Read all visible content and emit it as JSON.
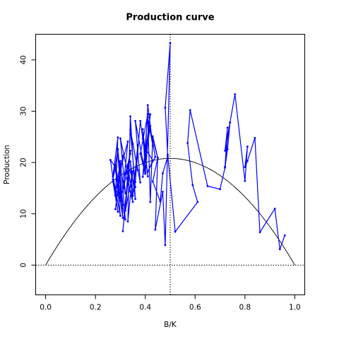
{
  "chart_data": {
    "type": "line",
    "title": "Production curve",
    "xlabel": "B/K",
    "ylabel": "Production",
    "xlim": [
      -0.04,
      1.04
    ],
    "ylim": [
      -5.8,
      45
    ],
    "x_ticks": [
      {
        "value": 0.0,
        "label": "0.0"
      },
      {
        "value": 0.2,
        "label": "0.2"
      },
      {
        "value": 0.4,
        "label": "0.4"
      },
      {
        "value": 0.6,
        "label": "0.6"
      },
      {
        "value": 0.8,
        "label": "0.8"
      },
      {
        "value": 1.0,
        "label": "1.0"
      }
    ],
    "y_ticks": [
      {
        "value": 0,
        "label": "0"
      },
      {
        "value": 10,
        "label": "10"
      },
      {
        "value": 20,
        "label": "20"
      },
      {
        "value": 30,
        "label": "30"
      },
      {
        "value": 40,
        "label": "40"
      }
    ],
    "grid": false,
    "colors": {
      "series": "#0000ff",
      "curve": "#000000",
      "reference": "#000000"
    },
    "curve": {
      "form": "parabola",
      "x_start": 0.0,
      "x_end": 1.0,
      "peak_x": 0.5,
      "peak_y": 20.8
    },
    "reference_lines": {
      "horizontal_y": 0,
      "vertical_x": 0.5
    },
    "series": [
      {
        "x": [
          0.96,
          0.94,
          0.92,
          0.86,
          0.84,
          0.81,
          0.8,
          0.81,
          0.8,
          0.76,
          0.74,
          0.72,
          0.73,
          0.72,
          0.74,
          0.73,
          0.72,
          0.7,
          0.65,
          0.58,
          0.57,
          0.59,
          0.61,
          0.52,
          0.49,
          0.48,
          0.5,
          0.48,
          0.47,
          0.44,
          0.45,
          0.43,
          0.42,
          0.41,
          0.43,
          0.41,
          0.4,
          0.42,
          0.4,
          0.39,
          0.41,
          0.39,
          0.38,
          0.36,
          0.37,
          0.35,
          0.34,
          0.36,
          0.34,
          0.33,
          0.35,
          0.32,
          0.34,
          0.31,
          0.33,
          0.3,
          0.32,
          0.29,
          0.31,
          0.28,
          0.3,
          0.27,
          0.29,
          0.26,
          0.28,
          0.27,
          0.29,
          0.31,
          0.28,
          0.3,
          0.27,
          0.29,
          0.28,
          0.3,
          0.32,
          0.29,
          0.31,
          0.28,
          0.3,
          0.33,
          0.31,
          0.34,
          0.32,
          0.35,
          0.33,
          0.36,
          0.34,
          0.37,
          0.35,
          0.38,
          0.36,
          0.4,
          0.38,
          0.41,
          0.39,
          0.42,
          0.4,
          0.43,
          0.41,
          0.44,
          0.42,
          0.45,
          0.43,
          0.46,
          0.47,
          0.49
        ],
        "y": [
          5.8,
          3.1,
          11.0,
          6.4,
          24.8,
          20.3,
          19.1,
          23.1,
          16.4,
          33.3,
          27.8,
          22.3,
          26.8,
          19.2,
          27.8,
          22.6,
          19.0,
          14.8,
          15.4,
          30.2,
          23.8,
          15.6,
          12.3,
          6.5,
          21.5,
          30.7,
          43.3,
          3.9,
          14.3,
          6.9,
          20.9,
          25.1,
          12.3,
          28.8,
          23.3,
          31.2,
          21.3,
          29.4,
          18.1,
          26.5,
          17.3,
          24.6,
          28.1,
          16.2,
          23.4,
          13.5,
          20.2,
          12.9,
          29.0,
          8.5,
          18.3,
          10.6,
          22.3,
          6.6,
          17.8,
          24.7,
          14.0,
          21.5,
          9.2,
          18.6,
          12.5,
          16.3,
          10.4,
          20.5,
          19.1,
          16.7,
          22.6,
          11.7,
          19.5,
          9.6,
          17.3,
          24.9,
          13.5,
          20.3,
          8.9,
          15.7,
          21.3,
          10.9,
          18.6,
          24.1,
          14.3,
          21.7,
          17.8,
          12.3,
          19.6,
          15.2,
          26.4,
          18.5,
          23.6,
          16.1,
          28.1,
          17.8,
          21.7,
          29.4,
          17.2,
          27.1,
          22.8,
          20.4,
          18.2,
          21.1,
          26.3,
          20.9,
          16.3,
          12.4,
          17.9,
          21.1
        ]
      }
    ]
  }
}
